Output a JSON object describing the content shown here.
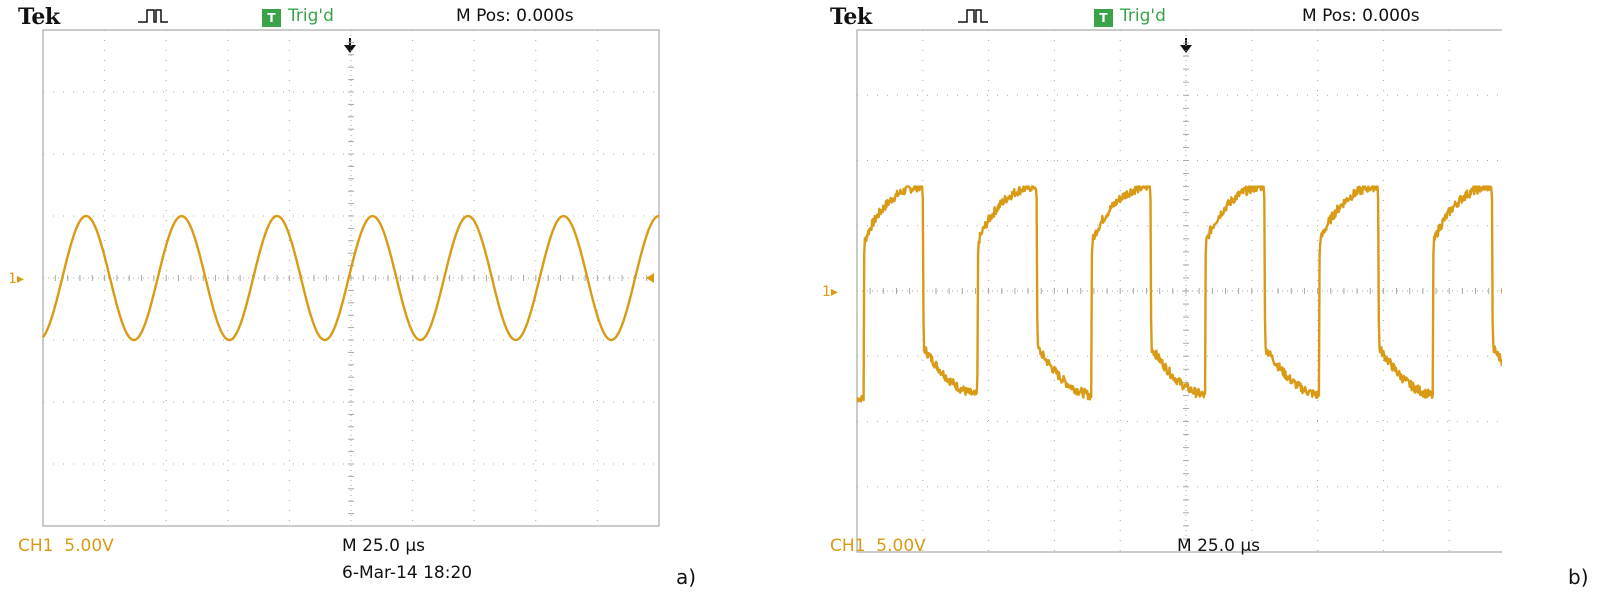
{
  "colors": {
    "trace": "#d99a16",
    "trigger": "#3aa34a",
    "grid": "#a8a8a8",
    "text": "#111111"
  },
  "chart_data": [
    {
      "type": "line",
      "panel_label": "a)",
      "header": {
        "brand": "Tek",
        "trigger_icon": "T",
        "trigger_status": "Trig'd",
        "position": "M Pos: 0.000s"
      },
      "footer": {
        "channel": "CH1",
        "volts_per_div": "5.00V",
        "timebase": "M 25.0 µs",
        "date": "6-Mar-14 18:20"
      },
      "channel_marker": "1▸",
      "grid": {
        "divisions_x": 10,
        "divisions_y": 8
      },
      "xlim": [
        0,
        10
      ],
      "ylim": [
        -4,
        4
      ],
      "series": [
        {
          "waveform": "sine",
          "x": [
            0,
            0.45,
            0.95,
            1.45,
            1.95,
            2.45,
            2.95,
            3.45,
            3.95,
            4.45,
            4.95,
            5.45,
            5.95,
            6.45,
            6.95,
            7.45,
            7.95,
            8.45,
            8.95,
            9.45,
            9.95,
            10
          ],
          "y": [
            -0.65,
            0.3,
            1.0,
            0.0,
            -1.0,
            0.0,
            1.0,
            0.0,
            -1.0,
            0.0,
            1.0,
            0.0,
            -1.0,
            0.0,
            1.0,
            0.0,
            -1.0,
            0.0,
            1.0,
            0.0,
            -1.0,
            -0.65
          ],
          "period_div": 1.55,
          "amplitude_div": 1.0,
          "offset_div": 0.0,
          "first_peak_div": 0.7
        }
      ]
    },
    {
      "type": "line",
      "panel_label": "b)",
      "header": {
        "brand": "Tek",
        "trigger_icon": "T",
        "trigger_status": "Trig'd",
        "position": "M Pos: 0.000s"
      },
      "footer": {
        "channel": "CH1",
        "volts_per_div": "5.00V",
        "timebase": "M 25.0 µs"
      },
      "channel_marker": "1▸",
      "grid": {
        "divisions_x": 10,
        "divisions_y": 8
      },
      "xlim": [
        0,
        10
      ],
      "ylim": [
        -4,
        4
      ],
      "series": [
        {
          "waveform": "distorted-square",
          "x": [
            0.1,
            0.2,
            0.3,
            0.9,
            1.0,
            1.1,
            1.9,
            2.0,
            2.1,
            2.9,
            3.0,
            3.1,
            3.7,
            3.8,
            3.9,
            4.6,
            4.7,
            4.8,
            5.6,
            5.7,
            5.8,
            6.4,
            6.5,
            6.6,
            7.4,
            7.5,
            7.6,
            8.3,
            8.4,
            8.5,
            9.2,
            9.3,
            9.4
          ],
          "y": [
            -1.75,
            0.8,
            1.55,
            -0.8,
            -1.85,
            1.4,
            1.55,
            -0.75,
            -1.85,
            1.4,
            1.55,
            -0.75,
            -1.85,
            1.4,
            1.55,
            -0.75,
            -1.85,
            1.4,
            1.55,
            -0.75,
            -1.85,
            1.4,
            1.55,
            -0.75,
            -1.85,
            1.4,
            1.55,
            -0.75,
            -1.85,
            1.4,
            1.55,
            -1.85,
            1.2
          ],
          "period_div": 1.73,
          "high_div": 1.5,
          "low_div": -1.3,
          "first_rise_div": 0.1
        }
      ]
    }
  ]
}
